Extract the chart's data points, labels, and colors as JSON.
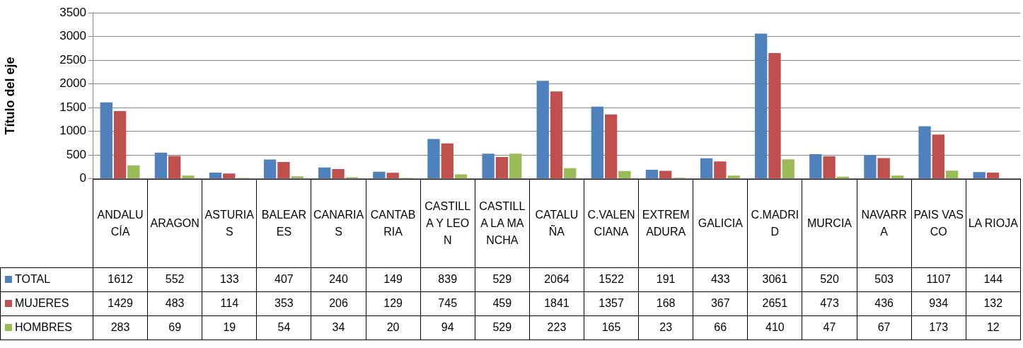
{
  "chart_data": {
    "type": "bar",
    "ylabel": "Título del eje",
    "categories": [
      "ANDALUCÍA",
      "ARAGON",
      "ASTURIAS",
      "BALEARES",
      "CANARIAS",
      "CANTABRIA",
      "CASTILLA Y LEON",
      "CASTILLA LA MANCHA",
      "CATALUÑA",
      "C.VALENCIANA",
      "EXTREMADURA",
      "GALICIA",
      "C.MADRID",
      "MURCIA",
      "NAVARRA",
      "PAIS VASCO",
      "LA RIOJA"
    ],
    "series": [
      {
        "name": "TOTAL",
        "color": "#4f81bd",
        "values": [
          1612,
          552,
          133,
          407,
          240,
          149,
          839,
          529,
          2064,
          1522,
          191,
          433,
          3061,
          520,
          503,
          1107,
          144
        ]
      },
      {
        "name": "MUJERES",
        "color": "#c0504d",
        "values": [
          1429,
          483,
          114,
          353,
          206,
          129,
          745,
          459,
          1841,
          1357,
          168,
          367,
          2651,
          473,
          436,
          934,
          132
        ]
      },
      {
        "name": "HOMBRES",
        "color": "#9bbb59",
        "values": [
          283,
          69,
          19,
          54,
          34,
          20,
          94,
          529,
          223,
          165,
          23,
          66,
          410,
          47,
          67,
          173,
          12
        ]
      }
    ],
    "ylim": [
      0,
      3500
    ],
    "yticks": [
      0,
      500,
      1000,
      1500,
      2000,
      2500,
      3000,
      3500
    ],
    "grid": "y",
    "legend": "bottom",
    "data_labels": true
  }
}
